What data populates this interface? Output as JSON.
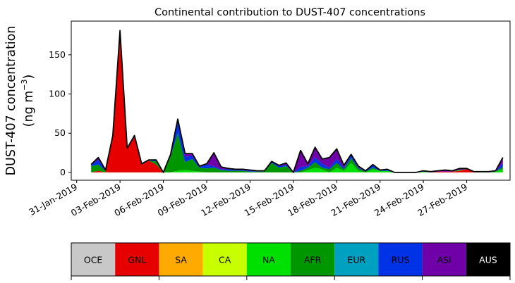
{
  "chart_data": {
    "type": "area",
    "stacked": true,
    "title": "Continental contribution to DUST-407 concentrations",
    "ylabel_line1": "DUST-407 concentration",
    "ylabel_line2_prefix": "(ng m",
    "ylabel_line2_sup": "−3",
    "ylabel_line2_suffix": ")",
    "ylim": [
      -10,
      193
    ],
    "yticks": [
      0,
      50,
      100,
      150
    ],
    "xlim": [
      "2019-01-30T15:00",
      "2019-03-02T00:00"
    ],
    "xticks": [
      "31-Jan-2019",
      "03-Feb-2019",
      "06-Feb-2019",
      "09-Feb-2019",
      "12-Feb-2019",
      "15-Feb-2019",
      "18-Feb-2019",
      "21-Feb-2019",
      "24-Feb-2019",
      "27-Feb-2019"
    ],
    "xtick_dates": [
      "2019-01-31",
      "2019-02-03",
      "2019-02-06",
      "2019-02-09",
      "2019-02-12",
      "2019-02-15",
      "2019-02-18",
      "2019-02-21",
      "2019-02-24",
      "2019-02-27"
    ],
    "x_dates": [
      "2019-02-01T00:00",
      "2019-02-01T12:00",
      "2019-02-02T00:00",
      "2019-02-02T12:00",
      "2019-02-03T00:00",
      "2019-02-03T12:00",
      "2019-02-04T00:00",
      "2019-02-04T12:00",
      "2019-02-05T00:00",
      "2019-02-05T12:00",
      "2019-02-06T00:00",
      "2019-02-06T12:00",
      "2019-02-07T00:00",
      "2019-02-07T12:00",
      "2019-02-08T00:00",
      "2019-02-08T12:00",
      "2019-02-09T00:00",
      "2019-02-09T12:00",
      "2019-02-10T00:00",
      "2019-02-10T12:00",
      "2019-02-11T00:00",
      "2019-02-11T12:00",
      "2019-02-12T00:00",
      "2019-02-12T12:00",
      "2019-02-13T00:00",
      "2019-02-13T12:00",
      "2019-02-14T00:00",
      "2019-02-14T12:00",
      "2019-02-15T00:00",
      "2019-02-15T12:00",
      "2019-02-16T00:00",
      "2019-02-16T12:00",
      "2019-02-17T00:00",
      "2019-02-17T12:00",
      "2019-02-18T00:00",
      "2019-02-18T12:00",
      "2019-02-19T00:00",
      "2019-02-19T12:00",
      "2019-02-20T00:00",
      "2019-02-20T12:00",
      "2019-02-21T00:00",
      "2019-02-21T12:00",
      "2019-02-22T00:00",
      "2019-02-22T12:00",
      "2019-02-23T00:00",
      "2019-02-23T12:00",
      "2019-02-24T00:00",
      "2019-02-24T12:00",
      "2019-02-25T00:00",
      "2019-02-25T12:00",
      "2019-02-26T00:00",
      "2019-02-26T12:00",
      "2019-02-27T00:00",
      "2019-02-27T12:00",
      "2019-02-28T00:00",
      "2019-02-28T12:00",
      "2019-03-01T00:00",
      "2019-03-01T12:00"
    ],
    "series": [
      {
        "name": "OCE",
        "color": "#c8c8c8",
        "values": [
          0,
          0,
          0,
          0,
          0,
          0,
          0,
          0,
          0,
          0,
          0,
          0,
          0,
          0,
          0,
          0,
          0,
          0,
          0,
          0,
          0,
          0,
          0,
          0,
          0,
          0,
          0,
          0,
          0,
          0,
          0,
          0,
          0,
          0,
          0,
          0,
          0,
          0,
          0,
          0,
          0,
          0,
          0,
          0,
          0,
          0,
          0,
          0,
          0,
          0,
          0,
          0,
          0,
          0,
          0,
          0,
          0,
          0
        ]
      },
      {
        "name": "GNL",
        "color": "#e60000",
        "values": [
          0,
          2,
          0,
          45,
          178,
          30,
          45,
          10,
          15,
          10,
          0,
          0,
          0,
          0,
          0,
          0,
          0,
          0,
          0,
          0,
          0,
          0,
          0,
          0,
          0,
          0,
          0,
          0,
          0,
          0,
          0,
          0,
          0,
          0,
          0,
          0,
          0,
          0,
          0,
          0,
          0,
          0,
          0,
          0,
          0,
          0,
          0,
          0,
          1,
          1,
          1,
          2,
          4,
          1,
          0,
          0,
          0,
          0
        ]
      },
      {
        "name": "SA",
        "color": "#ffaa00",
        "values": [
          0,
          0,
          0,
          0,
          0,
          0,
          0,
          0,
          0,
          0,
          0,
          0,
          0,
          0,
          0,
          0,
          0,
          0,
          0,
          0,
          0,
          0,
          0,
          0,
          0,
          0,
          0,
          0,
          0,
          0,
          0,
          0,
          0,
          0,
          0,
          0,
          0,
          0,
          0,
          0,
          0,
          0,
          0,
          0,
          0,
          0,
          0,
          0,
          0,
          0,
          0,
          0,
          0,
          0,
          0,
          0,
          0,
          0
        ]
      },
      {
        "name": "CA",
        "color": "#c8ff00",
        "values": [
          0,
          0,
          0,
          0,
          0,
          0,
          0,
          0,
          0,
          0,
          0,
          0,
          0,
          0,
          0,
          0,
          0,
          0,
          0,
          0,
          0,
          0,
          0,
          0,
          0,
          0,
          0,
          0,
          0,
          0,
          0,
          0,
          0,
          0,
          0,
          0,
          0,
          0,
          0,
          0,
          0,
          0,
          0,
          0,
          0,
          0,
          0,
          0,
          0,
          0,
          0,
          0,
          0,
          0,
          0,
          0,
          0,
          0
        ]
      },
      {
        "name": "NA",
        "color": "#00e000",
        "values": [
          0,
          0,
          0,
          0,
          0,
          0,
          0,
          0,
          0,
          0,
          0,
          0,
          2,
          3,
          2,
          1,
          0,
          0,
          0,
          0,
          0,
          0,
          0,
          0,
          0,
          0,
          0,
          0,
          0,
          0,
          3,
          6,
          4,
          0,
          6,
          2,
          12,
          2,
          0,
          4,
          2,
          2,
          0,
          0,
          0,
          0,
          1,
          0,
          0,
          0,
          0,
          1,
          0,
          0,
          1,
          0,
          1,
          4
        ]
      },
      {
        "name": "AFR",
        "color": "#009600",
        "values": [
          8,
          8,
          2,
          0,
          0,
          0,
          0,
          0,
          0,
          4,
          0,
          20,
          48,
          10,
          15,
          5,
          5,
          6,
          3,
          2,
          2,
          2,
          1,
          1,
          1,
          12,
          6,
          8,
          0,
          2,
          3,
          7,
          2,
          4,
          6,
          2,
          6,
          3,
          1,
          2,
          0,
          0,
          0,
          0,
          0,
          0,
          0,
          0,
          0,
          0,
          0,
          0,
          0,
          0,
          0,
          0,
          0,
          3
        ]
      },
      {
        "name": "EUR",
        "color": "#00a0c0",
        "values": [
          0,
          0,
          0,
          0,
          0,
          0,
          0,
          0,
          0,
          0,
          0,
          0,
          0,
          0,
          0,
          0,
          0,
          0,
          0,
          0,
          0,
          0,
          0,
          0,
          0,
          0,
          0,
          0,
          0,
          0,
          0,
          0,
          0,
          0,
          0,
          0,
          0,
          0,
          0,
          0,
          0,
          0,
          0,
          0,
          0,
          0,
          0,
          0,
          0,
          0,
          0,
          0,
          0,
          0,
          0,
          0,
          0,
          0
        ]
      },
      {
        "name": "RUS",
        "color": "#0032e6",
        "values": [
          2,
          6,
          1,
          2,
          3,
          1,
          2,
          1,
          1,
          2,
          0,
          3,
          15,
          7,
          4,
          1,
          5,
          2,
          1,
          2,
          1,
          1,
          1,
          1,
          1,
          1,
          2,
          2,
          0,
          5,
          2,
          6,
          5,
          2,
          5,
          2,
          4,
          1,
          1,
          3,
          1,
          2,
          0,
          0,
          0,
          0,
          1,
          0,
          0,
          0,
          0,
          0,
          0,
          0,
          0,
          0,
          0,
          5
        ]
      },
      {
        "name": "ASI",
        "color": "#7000a8",
        "values": [
          0,
          3,
          0,
          0,
          0,
          0,
          0,
          0,
          0,
          0,
          0,
          0,
          3,
          4,
          3,
          1,
          1,
          17,
          3,
          1,
          1,
          1,
          1,
          0,
          0,
          1,
          1,
          2,
          0,
          21,
          3,
          13,
          6,
          13,
          13,
          3,
          1,
          2,
          0,
          1,
          0,
          0,
          0,
          0,
          0,
          0,
          0,
          1,
          1,
          2,
          1,
          2,
          1,
          0,
          0,
          1,
          1,
          7
        ]
      },
      {
        "name": "AUS",
        "color": "#000000",
        "values": [
          0,
          0,
          0,
          0,
          0,
          0,
          0,
          0,
          0,
          0,
          0,
          0,
          0,
          0,
          0,
          0,
          0,
          0,
          0,
          0,
          0,
          0,
          0,
          0,
          0,
          0,
          0,
          0,
          0,
          0,
          0,
          0,
          0,
          0,
          0,
          0,
          0,
          0,
          0,
          0,
          0,
          0,
          0,
          0,
          0,
          0,
          0,
          0,
          0,
          0,
          0,
          0,
          0,
          0,
          0,
          0,
          0,
          0
        ]
      }
    ],
    "total": [
      10,
      19,
      3,
      47,
      181,
      31,
      47,
      11,
      16,
      16,
      0,
      23,
      68,
      24,
      24,
      8,
      11,
      25,
      7,
      5,
      4,
      4,
      3,
      2,
      2,
      14,
      9,
      12,
      0,
      28,
      11,
      32,
      17,
      19,
      30,
      9,
      23,
      8,
      2,
      10,
      3,
      4,
      0,
      0,
      0,
      0,
      2,
      1,
      2,
      3,
      2,
      5,
      5,
      1,
      1,
      1,
      2,
      19
    ]
  },
  "legend": {
    "items": [
      {
        "label": "OCE",
        "color": "#c8c8c8",
        "text_color": "#000000"
      },
      {
        "label": "GNL",
        "color": "#e60000",
        "text_color": "#000000"
      },
      {
        "label": "SA",
        "color": "#ffaa00",
        "text_color": "#000000"
      },
      {
        "label": "CA",
        "color": "#c8ff00",
        "text_color": "#000000"
      },
      {
        "label": "NA",
        "color": "#00e000",
        "text_color": "#000000"
      },
      {
        "label": "AFR",
        "color": "#009600",
        "text_color": "#000000"
      },
      {
        "label": "EUR",
        "color": "#00a0c0",
        "text_color": "#000000"
      },
      {
        "label": "RUS",
        "color": "#0032e6",
        "text_color": "#000000"
      },
      {
        "label": "ASI",
        "color": "#7000a8",
        "text_color": "#000000"
      },
      {
        "label": "AUS",
        "color": "#000000",
        "text_color": "#ffffff"
      }
    ]
  }
}
